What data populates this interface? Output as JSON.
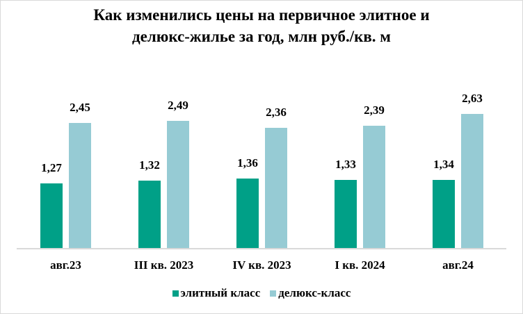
{
  "title_line1": "Как изменились цены на первичное элитное и",
  "title_line2": "делюкс-жилье за год, млн руб./кв. м",
  "colors": {
    "elite": "#00A087",
    "deluxe": "#96CBD4"
  },
  "legend": {
    "elite": "элитный класс",
    "deluxe": "делюкс-класс"
  },
  "categories": [
    "авг.23",
    "III кв. 2023",
    "IV кв. 2023",
    "I кв. 2024",
    "авг.24"
  ],
  "labels": {
    "elite": [
      "1,27",
      "1,32",
      "1,36",
      "1,33",
      "1,34"
    ],
    "deluxe": [
      "2,45",
      "2,49",
      "2,36",
      "2,39",
      "2,63"
    ]
  },
  "chart_data": {
    "type": "bar",
    "title": "Как изменились цены на первичное элитное и делюкс-жилье за год, млн руб./кв. м",
    "categories": [
      "авг.23",
      "III кв. 2023",
      "IV кв. 2023",
      "I кв. 2024",
      "авг.24"
    ],
    "series": [
      {
        "name": "элитный класс",
        "color": "#00A087",
        "values": [
          1.27,
          1.32,
          1.36,
          1.33,
          1.34
        ]
      },
      {
        "name": "делюкс-класс",
        "color": "#96CBD4",
        "values": [
          2.45,
          2.49,
          2.36,
          2.39,
          2.63
        ]
      }
    ],
    "xlabel": "",
    "ylabel": "",
    "y_axis_visible": false,
    "grid": false,
    "data_labels": true,
    "legend_position": "bottom"
  }
}
